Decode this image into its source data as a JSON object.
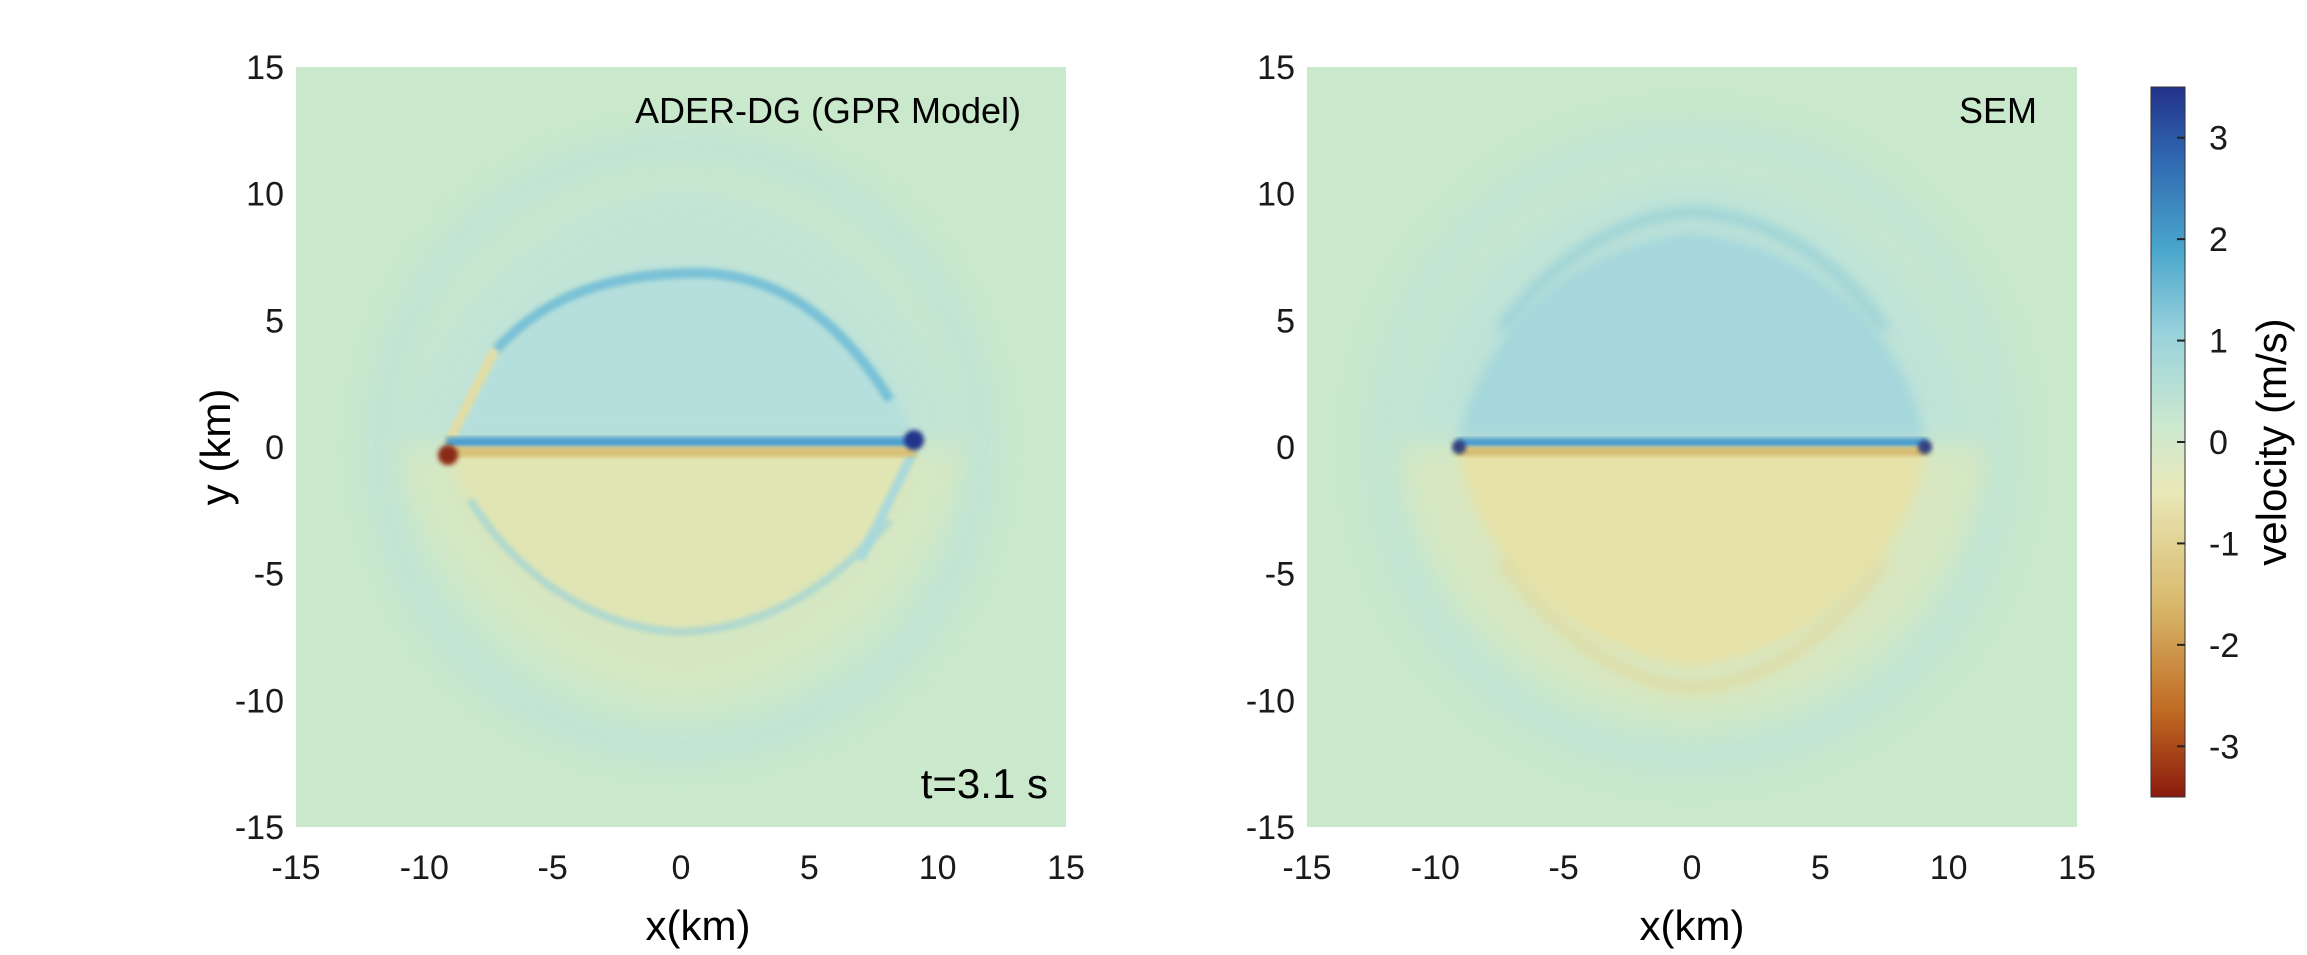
{
  "chart_data": [
    {
      "type": "heatmap",
      "title": "ADER-DG (GPR Model)",
      "annotation": "t=3.1 s",
      "xlabel": "x(km)",
      "ylabel": "y (km)",
      "xlim": [
        -15,
        15
      ],
      "ylim": [
        -15,
        15
      ],
      "xticks": [
        "-15",
        "-10",
        "-5",
        "0",
        "5",
        "10",
        "15"
      ],
      "yticks": [
        "15",
        "10",
        "5",
        "0",
        "-5",
        "-10",
        "-15"
      ],
      "rupture_x_extent": [
        -9,
        9
      ],
      "rupture_y": 0,
      "wavefront_radius_km": 8,
      "outer_wavefront_radius_km": 12,
      "peak_velocity_above": 1.0,
      "peak_velocity_below": -0.9,
      "background_velocity": 0.0
    },
    {
      "type": "heatmap",
      "title": "SEM",
      "xlabel": "x(km)",
      "ylabel": "",
      "xlim": [
        -15,
        15
      ],
      "ylim": [
        -15,
        15
      ],
      "xticks": [
        "-15",
        "-10",
        "-5",
        "0",
        "5",
        "10",
        "15"
      ],
      "yticks": [
        "15",
        "10",
        "5",
        "0",
        "-5",
        "-10",
        "-15"
      ],
      "rupture_x_extent": [
        -9,
        9
      ],
      "rupture_y": 0,
      "wavefront_radius_km": 9.6,
      "outer_wavefront_radius_km": 12,
      "peak_velocity_above": 1.0,
      "peak_velocity_below": -0.9,
      "background_velocity": 0.0
    }
  ],
  "colorbar": {
    "label": "velocity (m/s)",
    "range": [
      -3.5,
      3.5
    ],
    "ticks": [
      "3",
      "2",
      "1",
      "0",
      "-1",
      "-2",
      "-3"
    ],
    "colors": [
      "#8b1a0e",
      "#c06a22",
      "#d8b86a",
      "#e9e8b8",
      "#cde9cf",
      "#9ad3dc",
      "#4aa6cc",
      "#2f68b0",
      "#22318a"
    ]
  }
}
